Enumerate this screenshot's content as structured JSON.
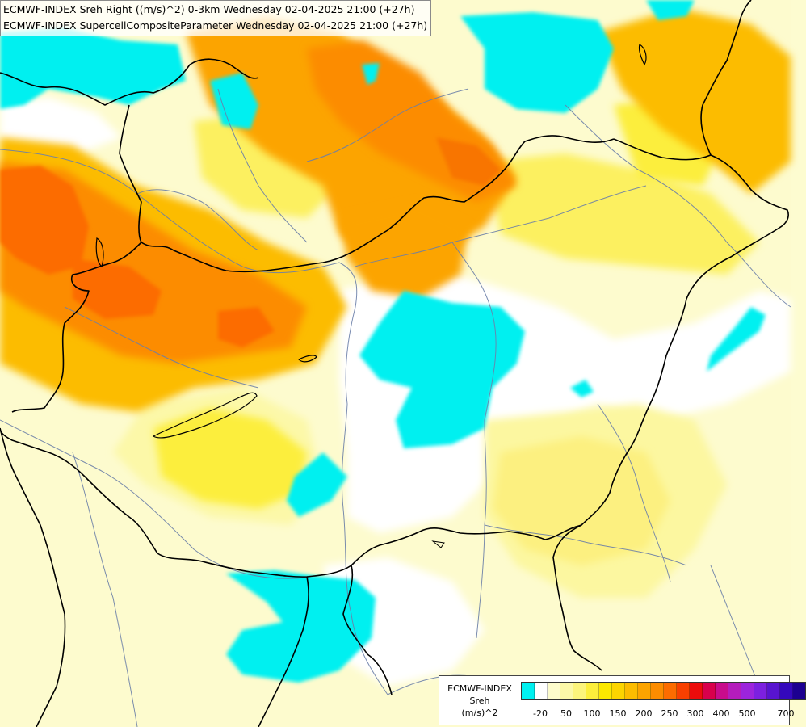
{
  "header": {
    "line1": "ECMWF-INDEX Sreh Right ((m/s)^2) 0-3km Wednesday 02-04-2025 21:00 (+27h)",
    "line2": "ECMWF-INDEX SupercellCompositeParameter Wednesday 02-04-2025 21:00 (+27h)"
  },
  "legend": {
    "model": "ECMWF-INDEX",
    "variable": "Sreh",
    "unit": "(m/s)^2",
    "colors": [
      "#00f0f0",
      "#ffffff",
      "#fdfccc",
      "#fcf8a8",
      "#fcf47c",
      "#fcee3c",
      "#fce800",
      "#fcd400",
      "#fcbc00",
      "#fca400",
      "#fc8c00",
      "#fc6c00",
      "#f84000",
      "#ec0c0c",
      "#d8004c",
      "#c80c8c",
      "#b41cbc",
      "#9c24dc",
      "#7c20e0",
      "#5814d0",
      "#3408bc",
      "#1c0090"
    ],
    "tick_labels": [
      "-20",
      "50",
      "100",
      "150",
      "200",
      "250",
      "300",
      "400",
      "500",
      "700"
    ]
  }
}
